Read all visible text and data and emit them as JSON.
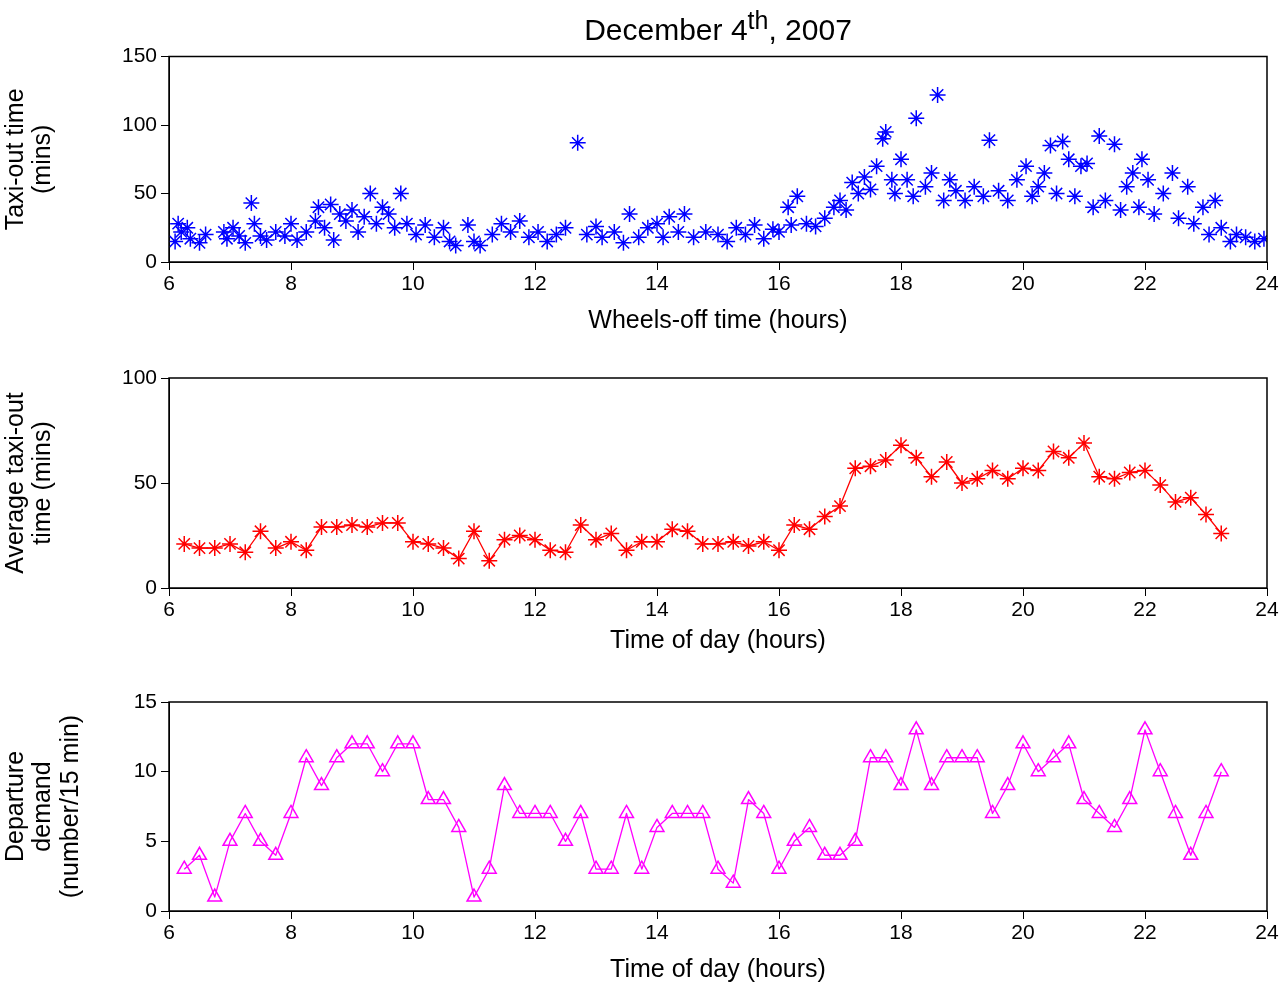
{
  "chart_data": [
    {
      "type": "scatter",
      "title": "December 4$^{th}$, 2007",
      "xlabel": "Wheels-off time (hours)",
      "ylabel": "Taxi-out time\n(mins)",
      "color": "#0000ff",
      "marker": "cross",
      "x": [
        6.1,
        6.15,
        6.2,
        6.3,
        6.35,
        6.5,
        6.6,
        6.9,
        6.95,
        7.05,
        7.15,
        7.25,
        7.35,
        7.4,
        7.5,
        7.6,
        7.75,
        7.9,
        8.0,
        8.1,
        8.25,
        8.4,
        8.45,
        8.55,
        8.65,
        8.7,
        8.8,
        8.9,
        9.0,
        9.1,
        9.2,
        9.3,
        9.4,
        9.5,
        9.6,
        9.7,
        9.8,
        9.9,
        10.05,
        10.2,
        10.35,
        10.5,
        10.6,
        10.7,
        10.9,
        11.0,
        11.1,
        11.3,
        11.45,
        11.6,
        11.75,
        11.9,
        12.05,
        12.2,
        12.35,
        12.5,
        12.7,
        12.85,
        13.0,
        13.1,
        13.3,
        13.45,
        13.55,
        13.7,
        13.85,
        14.0,
        14.1,
        14.2,
        14.35,
        14.45,
        14.6,
        14.8,
        15.0,
        15.15,
        15.3,
        15.45,
        15.6,
        15.75,
        15.9,
        16.0,
        16.15,
        16.2,
        16.3,
        16.45,
        16.6,
        16.75,
        16.9,
        17.0,
        17.1,
        17.2,
        17.3,
        17.4,
        17.5,
        17.6,
        17.7,
        17.75,
        17.85,
        17.9,
        18.0,
        18.1,
        18.2,
        18.25,
        18.4,
        18.5,
        18.6,
        18.7,
        18.8,
        18.9,
        19.05,
        19.2,
        19.35,
        19.45,
        19.6,
        19.75,
        19.9,
        20.05,
        20.15,
        20.25,
        20.35,
        20.45,
        20.55,
        20.65,
        20.75,
        20.85,
        20.95,
        21.05,
        21.15,
        21.25,
        21.35,
        21.5,
        21.6,
        21.7,
        21.8,
        21.9,
        21.95,
        22.05,
        22.15,
        22.3,
        22.45,
        22.55,
        22.7,
        22.8,
        22.95,
        23.05,
        23.15,
        23.25,
        23.4,
        23.5,
        23.65,
        23.8,
        23.95
      ],
      "values": [
        15,
        28,
        22,
        25,
        17,
        14,
        20,
        22,
        17,
        25,
        19,
        14,
        43,
        28,
        19,
        16,
        22,
        19,
        28,
        16,
        22,
        30,
        40,
        25,
        42,
        16,
        35,
        30,
        38,
        22,
        33,
        50,
        28,
        40,
        35,
        25,
        50,
        28,
        20,
        27,
        18,
        25,
        15,
        12,
        27,
        15,
        12,
        20,
        28,
        22,
        30,
        18,
        22,
        15,
        20,
        25,
        87,
        20,
        26,
        18,
        22,
        14,
        35,
        18,
        25,
        28,
        18,
        33,
        22,
        35,
        18,
        22,
        20,
        15,
        25,
        20,
        27,
        17,
        24,
        22,
        40,
        27,
        48,
        28,
        26,
        32,
        40,
        45,
        38,
        58,
        50,
        62,
        53,
        70,
        90,
        95,
        60,
        50,
        75,
        60,
        48,
        105,
        55,
        65,
        122,
        45,
        60,
        52,
        45,
        55,
        48,
        89,
        52,
        45,
        60,
        70,
        48,
        55,
        65,
        85,
        50,
        88,
        75,
        48,
        70,
        72,
        40,
        92,
        45,
        86,
        38,
        55,
        65,
        40,
        75,
        60,
        35,
        50,
        65,
        32,
        55,
        28,
        40,
        20,
        45,
        25,
        15,
        20,
        18,
        15,
        17
      ],
      "xlim": [
        6,
        24
      ],
      "xticks": [
        6,
        8,
        10,
        12,
        14,
        16,
        18,
        20,
        22,
        24
      ],
      "ylim": [
        0,
        150
      ],
      "yticks": [
        0,
        50,
        100,
        150
      ]
    },
    {
      "type": "line",
      "xlabel": "Time of day (hours)",
      "ylabel": "Average taxi-out\ntime (mins)",
      "color": "#ff0000",
      "marker": "cross",
      "x": [
        6.25,
        6.5,
        6.75,
        7,
        7.25,
        7.5,
        7.75,
        8,
        8.25,
        8.5,
        8.75,
        9,
        9.25,
        9.5,
        9.75,
        10,
        10.25,
        10.5,
        10.75,
        11,
        11.25,
        11.5,
        11.75,
        12,
        12.25,
        12.5,
        12.75,
        13,
        13.25,
        13.5,
        13.75,
        14,
        14.25,
        14.5,
        14.75,
        15,
        15.25,
        15.5,
        15.75,
        16,
        16.25,
        16.5,
        16.75,
        17,
        17.25,
        17.5,
        17.75,
        18,
        18.25,
        18.5,
        18.75,
        19,
        19.25,
        19.5,
        19.75,
        20,
        20.25,
        20.5,
        20.75,
        21,
        21.25,
        21.5,
        21.75,
        22,
        22.25,
        22.5,
        22.75,
        23,
        23.25
      ],
      "values": [
        21,
        19,
        19,
        21,
        17,
        27,
        19,
        22,
        18,
        29,
        29,
        30,
        29,
        31,
        31,
        22,
        21,
        19,
        14,
        27,
        13,
        23,
        25,
        23,
        18,
        17,
        30,
        23,
        26,
        18,
        22,
        22,
        28,
        27,
        21,
        21,
        22,
        20,
        22,
        18,
        30,
        28,
        34,
        39,
        57,
        58,
        61,
        68,
        62,
        53,
        60,
        50,
        52,
        56,
        52,
        57,
        56,
        65,
        62,
        69,
        53,
        52,
        55,
        56,
        49,
        41,
        43,
        35,
        26
      ],
      "xlim": [
        6,
        24
      ],
      "xticks": [
        6,
        8,
        10,
        12,
        14,
        16,
        18,
        20,
        22,
        24
      ],
      "ylim": [
        0,
        100
      ],
      "yticks": [
        0,
        50,
        100
      ]
    },
    {
      "type": "line",
      "xlabel": "Time of day (hours)",
      "ylabel": "Departure\ndemand\n(number/15 min)",
      "color": "#ff00ff",
      "marker": "triangle",
      "x": [
        6.25,
        6.5,
        6.75,
        7,
        7.25,
        7.5,
        7.75,
        8,
        8.25,
        8.5,
        8.75,
        9,
        9.25,
        9.5,
        9.75,
        10,
        10.25,
        10.5,
        10.75,
        11,
        11.25,
        11.5,
        11.75,
        12,
        12.25,
        12.5,
        12.75,
        13,
        13.25,
        13.5,
        13.75,
        14,
        14.25,
        14.5,
        14.75,
        15,
        15.25,
        15.5,
        15.75,
        16,
        16.25,
        16.5,
        16.75,
        17,
        17.25,
        17.5,
        17.75,
        18,
        18.25,
        18.5,
        18.75,
        19,
        19.25,
        19.5,
        19.75,
        20,
        20.25,
        20.5,
        20.75,
        21,
        21.25,
        21.5,
        21.75,
        22,
        22.25,
        22.5,
        22.75,
        23,
        23.25
      ],
      "values": [
        3,
        4,
        1,
        5,
        7,
        5,
        4,
        7,
        11,
        9,
        11,
        12,
        12,
        10,
        12,
        12,
        8,
        8,
        6,
        1,
        3,
        9,
        7,
        7,
        7,
        5,
        7,
        3,
        3,
        7,
        3,
        6,
        7,
        7,
        7,
        3,
        2,
        8,
        7,
        3,
        5,
        6,
        4,
        4,
        5,
        11,
        11,
        9,
        13,
        9,
        11,
        11,
        11,
        7,
        9,
        12,
        10,
        11,
        12,
        8,
        7,
        6,
        8,
        13,
        10,
        7,
        4,
        7,
        10
      ],
      "xlim": [
        6,
        24
      ],
      "xticks": [
        6,
        8,
        10,
        12,
        14,
        16,
        18,
        20,
        22,
        24
      ],
      "ylim": [
        0,
        15
      ],
      "yticks": [
        0,
        5,
        10,
        15
      ]
    }
  ]
}
